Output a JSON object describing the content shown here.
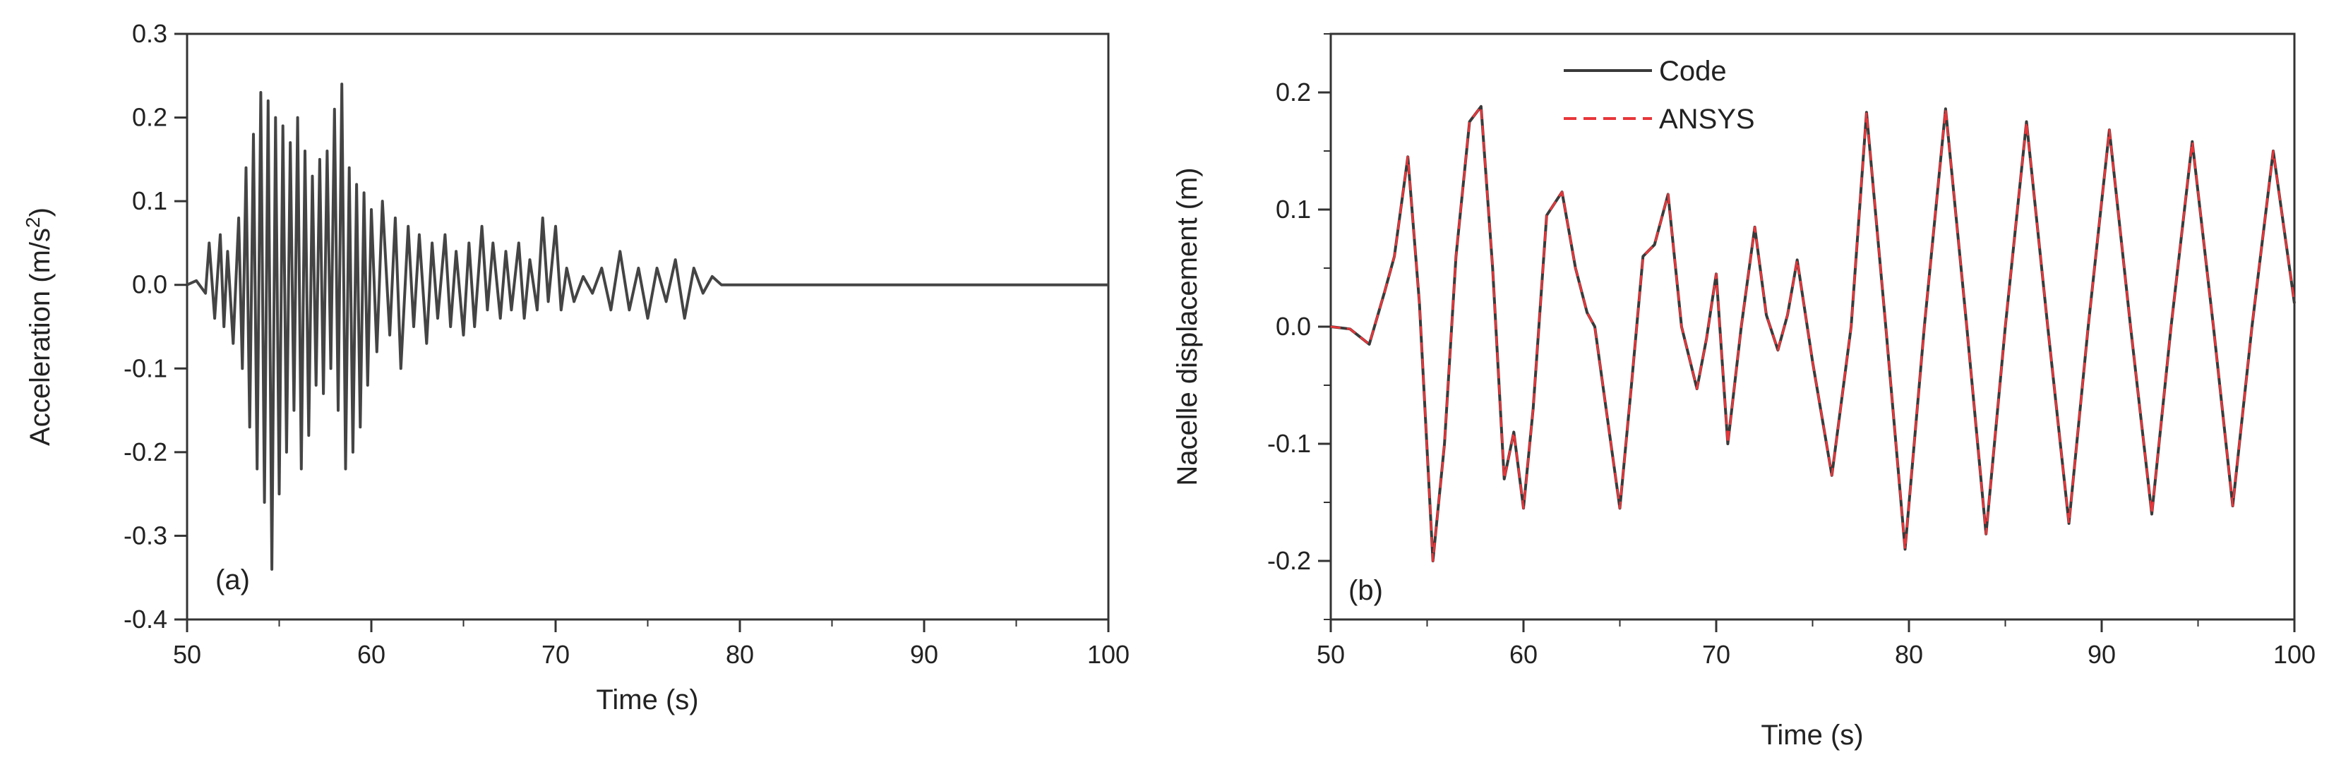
{
  "chart_data": [
    {
      "panel_label": "(a)",
      "type": "line",
      "xlabel": "Time (s)",
      "ylabel_main": "Acceleration (m/s",
      "ylabel_sup": "2",
      "ylabel_end": ")",
      "xlim": [
        50,
        100
      ],
      "ylim": [
        -0.4,
        0.3
      ],
      "xticks": [
        50,
        60,
        70,
        80,
        90,
        100
      ],
      "xtick_labels": [
        "50",
        "60",
        "70",
        "80",
        "90",
        "100"
      ],
      "yticks": [
        -0.4,
        -0.3,
        -0.2,
        -0.1,
        0.0,
        0.1,
        0.2,
        0.3
      ],
      "ytick_labels": [
        "-0.4",
        "-0.3",
        "-0.2",
        "-0.1",
        "0.0",
        "0.1",
        "0.2",
        "0.3"
      ],
      "grid": false,
      "series": [
        {
          "color": "#444444",
          "x": [
            50.0,
            50.5,
            51.0,
            51.2,
            51.5,
            51.8,
            52.0,
            52.2,
            52.5,
            52.8,
            53.0,
            53.2,
            53.4,
            53.6,
            53.8,
            54.0,
            54.2,
            54.4,
            54.6,
            54.8,
            55.0,
            55.2,
            55.4,
            55.6,
            55.8,
            56.0,
            56.2,
            56.4,
            56.6,
            56.8,
            57.0,
            57.2,
            57.4,
            57.6,
            57.8,
            58.0,
            58.2,
            58.4,
            58.6,
            58.8,
            59.0,
            59.2,
            59.4,
            59.6,
            59.8,
            60.0,
            60.3,
            60.6,
            61.0,
            61.3,
            61.6,
            62.0,
            62.3,
            62.6,
            63.0,
            63.3,
            63.6,
            64.0,
            64.3,
            64.6,
            65.0,
            65.3,
            65.6,
            66.0,
            66.3,
            66.6,
            67.0,
            67.3,
            67.6,
            68.0,
            68.3,
            68.6,
            69.0,
            69.3,
            69.6,
            70.0,
            70.3,
            70.6,
            71.0,
            71.5,
            72.0,
            72.5,
            73.0,
            73.5,
            74.0,
            74.5,
            75.0,
            75.5,
            76.0,
            76.5,
            77.0,
            77.5,
            78.0,
            78.5,
            79.0,
            79.5,
            80.0,
            100.0
          ],
          "y": [
            0.0,
            0.005,
            -0.01,
            0.05,
            -0.04,
            0.06,
            -0.05,
            0.04,
            -0.07,
            0.08,
            -0.1,
            0.14,
            -0.17,
            0.18,
            -0.22,
            0.23,
            -0.26,
            0.22,
            -0.34,
            0.2,
            -0.25,
            0.19,
            -0.2,
            0.17,
            -0.15,
            0.2,
            -0.22,
            0.16,
            -0.18,
            0.13,
            -0.12,
            0.15,
            -0.13,
            0.16,
            -0.1,
            0.21,
            -0.15,
            0.24,
            -0.22,
            0.14,
            -0.2,
            0.12,
            -0.17,
            0.11,
            -0.12,
            0.09,
            -0.08,
            0.1,
            -0.06,
            0.08,
            -0.1,
            0.07,
            -0.05,
            0.06,
            -0.07,
            0.05,
            -0.04,
            0.06,
            -0.05,
            0.04,
            -0.06,
            0.05,
            -0.05,
            0.07,
            -0.03,
            0.05,
            -0.04,
            0.04,
            -0.03,
            0.05,
            -0.04,
            0.03,
            -0.03,
            0.08,
            -0.02,
            0.07,
            -0.03,
            0.02,
            -0.02,
            0.01,
            -0.01,
            0.02,
            -0.03,
            0.04,
            -0.03,
            0.02,
            -0.04,
            0.02,
            -0.02,
            0.03,
            -0.04,
            0.02,
            -0.01,
            0.01,
            0.0,
            0.0,
            0.0,
            0.0
          ]
        }
      ]
    },
    {
      "panel_label": "(b)",
      "type": "line",
      "xlabel": "Time (s)",
      "ylabel": "Nacelle displacement (m)",
      "xlim": [
        50,
        100
      ],
      "ylim": [
        -0.25,
        0.25
      ],
      "xticks": [
        50,
        60,
        70,
        80,
        90,
        100
      ],
      "xtick_labels": [
        "50",
        "60",
        "70",
        "80",
        "90",
        "100"
      ],
      "yticks": [
        -0.2,
        -0.1,
        0.0,
        0.1,
        0.2
      ],
      "ytick_labels": [
        "-0.2",
        "-0.1",
        "0.0",
        "0.1",
        "0.2"
      ],
      "grid": false,
      "legend_position": "top",
      "series": [
        {
          "name": "Code",
          "color": "#3a3a3a",
          "style": "solid",
          "x": [
            50.0,
            51.0,
            52.0,
            52.8,
            53.3,
            54.0,
            54.6,
            55.3,
            55.9,
            56.5,
            57.2,
            57.8,
            58.4,
            59.0,
            59.5,
            60.0,
            60.5,
            61.2,
            62.0,
            62.7,
            63.3,
            63.7,
            64.2,
            65.0,
            65.6,
            66.2,
            66.8,
            67.5,
            68.2,
            69.0,
            69.5,
            70.0,
            70.6,
            71.3,
            72.0,
            72.6,
            73.2,
            73.7,
            74.2,
            75.0,
            76.0,
            77.0,
            77.8,
            78.8,
            79.8,
            80.8,
            81.9,
            83.0,
            84.0,
            85.0,
            86.1,
            87.2,
            88.3,
            89.3,
            90.4,
            91.5,
            92.6,
            93.6,
            94.7,
            95.8,
            96.8,
            97.8,
            98.9,
            100.0
          ],
          "y": [
            0.0,
            -0.002,
            -0.015,
            0.03,
            0.06,
            0.145,
            0.02,
            -0.2,
            -0.1,
            0.06,
            0.175,
            0.188,
            0.05,
            -0.13,
            -0.09,
            -0.155,
            -0.07,
            0.095,
            0.115,
            0.05,
            0.012,
            0.0,
            -0.06,
            -0.155,
            -0.05,
            0.06,
            0.07,
            0.113,
            0.0,
            -0.053,
            -0.01,
            0.045,
            -0.1,
            0.0,
            0.085,
            0.01,
            -0.02,
            0.01,
            0.057,
            -0.03,
            -0.127,
            0.0,
            0.183,
            0.0,
            -0.19,
            0.0,
            0.186,
            0.0,
            -0.177,
            0.0,
            0.175,
            0.0,
            -0.168,
            0.0,
            0.168,
            0.0,
            -0.16,
            0.0,
            0.158,
            0.0,
            -0.153,
            0.0,
            0.15,
            0.02
          ]
        },
        {
          "name": "ANSYS",
          "color": "#e8363a",
          "style": "dashed",
          "x": [
            50.0,
            51.0,
            52.0,
            52.8,
            53.3,
            54.0,
            54.6,
            55.3,
            55.9,
            56.5,
            57.2,
            57.8,
            58.4,
            59.0,
            59.5,
            60.0,
            60.5,
            61.2,
            62.0,
            62.7,
            63.3,
            63.7,
            64.2,
            65.0,
            65.6,
            66.2,
            66.8,
            67.5,
            68.2,
            69.0,
            69.5,
            70.0,
            70.6,
            71.3,
            72.0,
            72.6,
            73.2,
            73.7,
            74.2,
            75.0,
            76.0,
            77.0,
            77.8,
            78.8,
            79.8,
            80.8,
            81.9,
            83.0,
            84.0,
            85.0,
            86.1,
            87.2,
            88.3,
            89.3,
            90.4,
            91.5,
            92.6,
            93.6,
            94.7,
            95.8,
            96.8,
            97.8,
            98.9,
            100.0
          ],
          "y": [
            0.0,
            -0.002,
            -0.015,
            0.03,
            0.06,
            0.145,
            0.02,
            -0.2,
            -0.1,
            0.06,
            0.175,
            0.188,
            0.05,
            -0.13,
            -0.09,
            -0.155,
            -0.07,
            0.095,
            0.115,
            0.05,
            0.012,
            0.0,
            -0.06,
            -0.155,
            -0.05,
            0.06,
            0.07,
            0.113,
            0.0,
            -0.053,
            -0.01,
            0.045,
            -0.1,
            0.0,
            0.085,
            0.01,
            -0.02,
            0.01,
            0.057,
            -0.03,
            -0.127,
            0.0,
            0.183,
            0.0,
            -0.19,
            0.0,
            0.186,
            0.0,
            -0.177,
            0.0,
            0.175,
            0.0,
            -0.168,
            0.0,
            0.168,
            0.0,
            -0.16,
            0.0,
            0.158,
            0.0,
            -0.153,
            0.0,
            0.15,
            0.02
          ]
        }
      ]
    }
  ]
}
